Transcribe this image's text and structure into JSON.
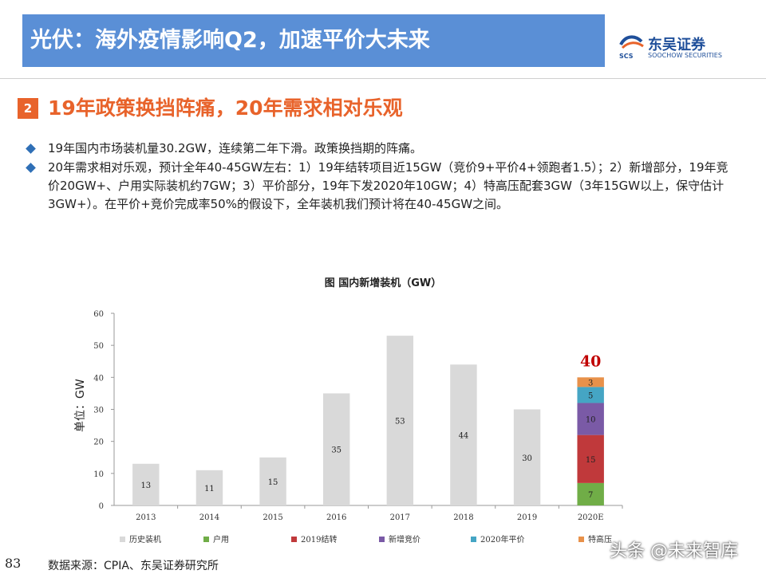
{
  "header": {
    "title": "光伏：海外疫情影响Q2，加速平价大未来",
    "logo_cn": "东吴证券",
    "logo_en": "SOOCHOW SECURITIES",
    "logo_mark": "SCS"
  },
  "section": {
    "badge": "2",
    "title": "19年政策换挡阵痛，20年需求相对乐观"
  },
  "bullets": [
    "19年国内市场装机量30.2GW，连续第二年下滑。政策换挡期的阵痛。",
    "20年需求相对乐观，预计全年40-45GW左右：1）19年结转项目近15GW（竞价9+平价4+领跑者1.5）；2）新增部分，19年竞价20GW+、户用实际装机约7GW；3）平价部分，19年下发2020年10GW；4）特高压配套3GW（3年15GW以上，保守估计3GW+）。在平价+竞价完成率50%的假设下，全年装机我们预计将在40-45GW之间。"
  ],
  "chart_data": {
    "type": "bar",
    "title": "图  国内新增装机（GW）",
    "ylabel": "单位：GW",
    "ylim": [
      0,
      60
    ],
    "yticks": [
      0,
      10,
      20,
      30,
      40,
      50,
      60
    ],
    "categories": [
      "2013",
      "2014",
      "2015",
      "2016",
      "2017",
      "2018",
      "2019",
      "2020E"
    ],
    "series": [
      {
        "name": "历史装机",
        "color": "#d9d9d9",
        "values": [
          13,
          11,
          15,
          35,
          53,
          44,
          30,
          0
        ]
      },
      {
        "name": "户用",
        "color": "#70ad47",
        "values": [
          0,
          0,
          0,
          0,
          0,
          0,
          0,
          7
        ]
      },
      {
        "name": "2019结转",
        "color": "#c0393b",
        "values": [
          0,
          0,
          0,
          0,
          0,
          0,
          0,
          15
        ]
      },
      {
        "name": "新增竞价",
        "color": "#7a5aa6",
        "values": [
          0,
          0,
          0,
          0,
          0,
          0,
          0,
          10
        ]
      },
      {
        "name": "2020年平价",
        "color": "#45a5c4",
        "values": [
          0,
          0,
          0,
          0,
          0,
          0,
          0,
          5
        ]
      },
      {
        "name": "特高压",
        "color": "#e8914a",
        "values": [
          0,
          0,
          0,
          0,
          0,
          0,
          0,
          3
        ]
      }
    ],
    "total_label": "40",
    "total_color": "#c00000"
  },
  "footer": {
    "page": "83",
    "source": "数据来源：CPIA、东吴证券研究所"
  },
  "watermark": "头条 @未来智库"
}
